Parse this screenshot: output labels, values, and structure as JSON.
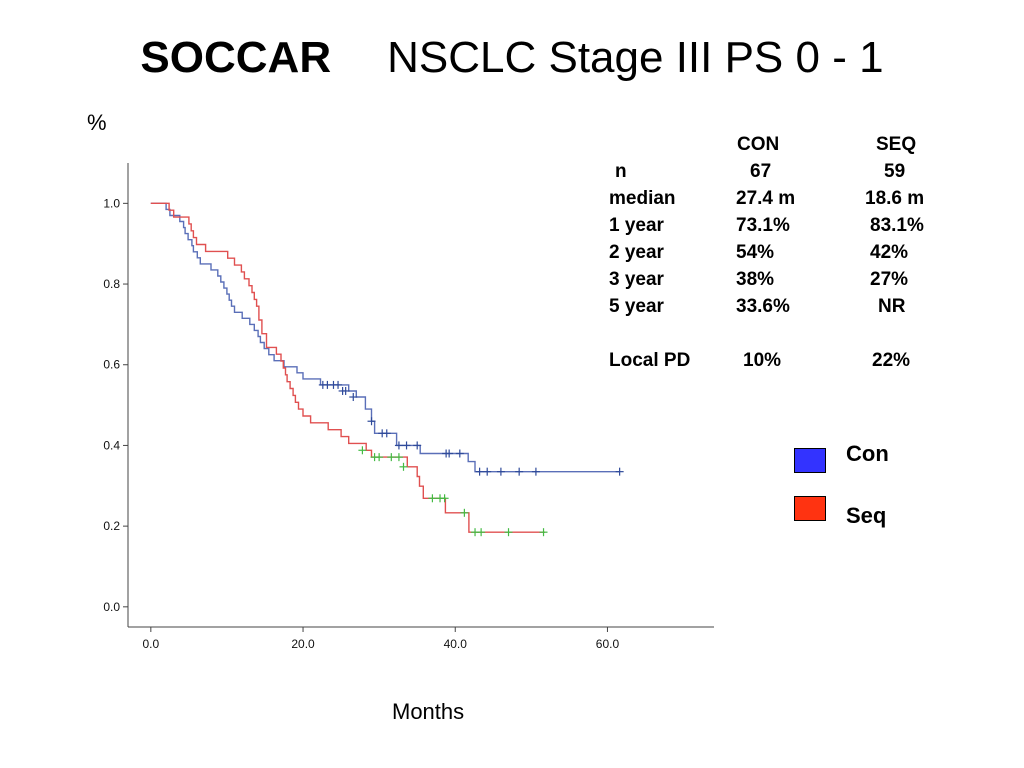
{
  "title": {
    "bold": "SOCCAR",
    "rest": "NSCLC Stage III PS 0 - 1"
  },
  "stats_table": {
    "headers": [
      "CON",
      "SEQ"
    ],
    "rows": [
      {
        "label": "n",
        "con": "67",
        "seq": "59"
      },
      {
        "label": "median",
        "con": "27.4 m",
        "seq": "18.6 m"
      },
      {
        "label": "1 year",
        "con": "73.1%",
        "seq": "83.1%"
      },
      {
        "label": "2 year",
        "con": "54%",
        "seq": "42%"
      },
      {
        "label": "3 year",
        "con": "38%",
        "seq": "27%"
      },
      {
        "label": "5 year",
        "con": "33.6%",
        "seq": "NR"
      }
    ],
    "local_pd": {
      "label": "Local  PD",
      "con": "10%",
      "seq": "22%"
    }
  },
  "legend": [
    {
      "label": "Con",
      "color": "#3333ff"
    },
    {
      "label": "Seq",
      "color": "#ff3311"
    }
  ],
  "chart_data": {
    "type": "line",
    "title": "",
    "xlabel": "Months",
    "ylabel": "%",
    "xlim": [
      -3,
      74
    ],
    "ylim": [
      -0.05,
      1.1
    ],
    "x_ticks": [
      0,
      20,
      40,
      60
    ],
    "x_tick_labels": [
      "0.0",
      "20.0",
      "40.0",
      "60.0"
    ],
    "y_ticks": [
      0,
      0.2,
      0.4,
      0.6,
      0.8,
      1.0
    ],
    "y_tick_labels": [
      "0.0",
      "0.2",
      "0.4",
      "0.6",
      "0.8",
      "1.0"
    ],
    "grid": false,
    "series": [
      {
        "name": "Con",
        "color": "#5a6fb8",
        "censor_color": "#2f4a9a",
        "steps": [
          [
            0,
            1.0
          ],
          [
            2.0,
            1.0
          ],
          [
            2.0,
            0.985
          ],
          [
            2.5,
            0.985
          ],
          [
            2.5,
            0.97
          ],
          [
            3.8,
            0.97
          ],
          [
            3.8,
            0.955
          ],
          [
            4.3,
            0.955
          ],
          [
            4.3,
            0.94
          ],
          [
            4.5,
            0.94
          ],
          [
            4.5,
            0.925
          ],
          [
            4.9,
            0.925
          ],
          [
            4.9,
            0.91
          ],
          [
            5.4,
            0.91
          ],
          [
            5.4,
            0.895
          ],
          [
            5.6,
            0.895
          ],
          [
            5.6,
            0.88
          ],
          [
            6.1,
            0.88
          ],
          [
            6.1,
            0.865
          ],
          [
            6.5,
            0.865
          ],
          [
            6.5,
            0.85
          ],
          [
            7.9,
            0.85
          ],
          [
            7.9,
            0.835
          ],
          [
            8.8,
            0.835
          ],
          [
            8.8,
            0.82
          ],
          [
            9.2,
            0.82
          ],
          [
            9.2,
            0.805
          ],
          [
            9.6,
            0.805
          ],
          [
            9.6,
            0.79
          ],
          [
            10.0,
            0.79
          ],
          [
            10.0,
            0.775
          ],
          [
            10.3,
            0.775
          ],
          [
            10.3,
            0.76
          ],
          [
            10.6,
            0.76
          ],
          [
            10.6,
            0.745
          ],
          [
            11.0,
            0.745
          ],
          [
            11.0,
            0.73
          ],
          [
            12.0,
            0.73
          ],
          [
            12.0,
            0.715
          ],
          [
            13.0,
            0.715
          ],
          [
            13.0,
            0.7
          ],
          [
            13.6,
            0.7
          ],
          [
            13.6,
            0.685
          ],
          [
            14.1,
            0.685
          ],
          [
            14.1,
            0.67
          ],
          [
            14.4,
            0.67
          ],
          [
            14.4,
            0.655
          ],
          [
            14.9,
            0.655
          ],
          [
            14.9,
            0.64
          ],
          [
            15.5,
            0.64
          ],
          [
            15.5,
            0.625
          ],
          [
            16.2,
            0.625
          ],
          [
            16.2,
            0.61
          ],
          [
            17.5,
            0.61
          ],
          [
            17.5,
            0.595
          ],
          [
            19.2,
            0.595
          ],
          [
            19.2,
            0.58
          ],
          [
            20.0,
            0.58
          ],
          [
            20.0,
            0.565
          ],
          [
            22.3,
            0.565
          ],
          [
            22.3,
            0.55
          ],
          [
            26.0,
            0.55
          ],
          [
            26.0,
            0.535
          ],
          [
            27.0,
            0.535
          ],
          [
            27.0,
            0.52
          ],
          [
            28.2,
            0.52
          ],
          [
            28.2,
            0.49
          ],
          [
            29.0,
            0.49
          ],
          [
            29.0,
            0.46
          ],
          [
            29.4,
            0.46
          ],
          [
            29.4,
            0.43
          ],
          [
            32.3,
            0.43
          ],
          [
            32.3,
            0.4
          ],
          [
            35.4,
            0.4
          ],
          [
            35.4,
            0.38
          ],
          [
            41.7,
            0.38
          ],
          [
            41.7,
            0.36
          ],
          [
            42.6,
            0.36
          ],
          [
            42.6,
            0.335
          ],
          [
            61.6,
            0.335
          ]
        ],
        "censored": [
          [
            22.6,
            0.55
          ],
          [
            23.2,
            0.55
          ],
          [
            24.0,
            0.55
          ],
          [
            24.6,
            0.55
          ],
          [
            25.2,
            0.535
          ],
          [
            25.6,
            0.535
          ],
          [
            26.6,
            0.52
          ],
          [
            29.0,
            0.46
          ],
          [
            30.4,
            0.43
          ],
          [
            31.0,
            0.43
          ],
          [
            32.6,
            0.4
          ],
          [
            33.6,
            0.4
          ],
          [
            35.0,
            0.4
          ],
          [
            38.8,
            0.38
          ],
          [
            39.2,
            0.38
          ],
          [
            40.6,
            0.38
          ],
          [
            43.2,
            0.335
          ],
          [
            44.2,
            0.335
          ],
          [
            46.0,
            0.335
          ],
          [
            48.4,
            0.335
          ],
          [
            50.6,
            0.335
          ],
          [
            61.6,
            0.335
          ]
        ]
      },
      {
        "name": "Seq",
        "color": "#e05050",
        "censor_color": "#44bb44",
        "steps": [
          [
            0,
            1.0
          ],
          [
            2.4,
            1.0
          ],
          [
            2.4,
            0.983
          ],
          [
            3.0,
            0.983
          ],
          [
            3.0,
            0.966
          ],
          [
            5.0,
            0.966
          ],
          [
            5.0,
            0.949
          ],
          [
            5.3,
            0.949
          ],
          [
            5.3,
            0.932
          ],
          [
            5.6,
            0.932
          ],
          [
            5.6,
            0.915
          ],
          [
            6.0,
            0.915
          ],
          [
            6.0,
            0.898
          ],
          [
            7.2,
            0.898
          ],
          [
            7.2,
            0.881
          ],
          [
            10.1,
            0.881
          ],
          [
            10.1,
            0.864
          ],
          [
            11.0,
            0.864
          ],
          [
            11.0,
            0.847
          ],
          [
            11.9,
            0.847
          ],
          [
            11.9,
            0.83
          ],
          [
            12.3,
            0.83
          ],
          [
            12.3,
            0.813
          ],
          [
            12.9,
            0.813
          ],
          [
            12.9,
            0.796
          ],
          [
            13.3,
            0.796
          ],
          [
            13.3,
            0.779
          ],
          [
            13.6,
            0.779
          ],
          [
            13.6,
            0.762
          ],
          [
            13.9,
            0.762
          ],
          [
            13.9,
            0.745
          ],
          [
            14.2,
            0.745
          ],
          [
            14.2,
            0.711
          ],
          [
            14.6,
            0.711
          ],
          [
            14.6,
            0.677
          ],
          [
            15.2,
            0.677
          ],
          [
            15.2,
            0.643
          ],
          [
            16.5,
            0.643
          ],
          [
            16.5,
            0.626
          ],
          [
            17.1,
            0.626
          ],
          [
            17.1,
            0.609
          ],
          [
            17.4,
            0.609
          ],
          [
            17.4,
            0.592
          ],
          [
            17.7,
            0.592
          ],
          [
            17.7,
            0.575
          ],
          [
            17.9,
            0.575
          ],
          [
            17.9,
            0.558
          ],
          [
            18.3,
            0.558
          ],
          [
            18.3,
            0.541
          ],
          [
            18.7,
            0.541
          ],
          [
            18.7,
            0.524
          ],
          [
            19.0,
            0.524
          ],
          [
            19.0,
            0.507
          ],
          [
            19.4,
            0.507
          ],
          [
            19.4,
            0.49
          ],
          [
            20.0,
            0.49
          ],
          [
            20.0,
            0.473
          ],
          [
            21.0,
            0.473
          ],
          [
            21.0,
            0.456
          ],
          [
            23.3,
            0.456
          ],
          [
            23.3,
            0.439
          ],
          [
            25.0,
            0.439
          ],
          [
            25.0,
            0.422
          ],
          [
            26.0,
            0.422
          ],
          [
            26.0,
            0.405
          ],
          [
            28.3,
            0.405
          ],
          [
            28.3,
            0.388
          ],
          [
            29.0,
            0.388
          ],
          [
            29.0,
            0.371
          ],
          [
            33.7,
            0.371
          ],
          [
            33.7,
            0.347
          ],
          [
            35.0,
            0.347
          ],
          [
            35.0,
            0.323
          ],
          [
            35.3,
            0.323
          ],
          [
            35.3,
            0.299
          ],
          [
            35.8,
            0.299
          ],
          [
            35.8,
            0.269
          ],
          [
            38.7,
            0.269
          ],
          [
            38.7,
            0.233
          ],
          [
            41.8,
            0.233
          ],
          [
            41.8,
            0.185
          ],
          [
            51.8,
            0.185
          ]
        ],
        "censored": [
          [
            27.8,
            0.388
          ],
          [
            29.4,
            0.371
          ],
          [
            30.0,
            0.371
          ],
          [
            31.6,
            0.371
          ],
          [
            32.6,
            0.371
          ],
          [
            33.2,
            0.347
          ],
          [
            37.0,
            0.269
          ],
          [
            38.0,
            0.269
          ],
          [
            38.6,
            0.269
          ],
          [
            41.2,
            0.233
          ],
          [
            42.6,
            0.185
          ],
          [
            43.4,
            0.185
          ],
          [
            47.0,
            0.185
          ],
          [
            51.6,
            0.185
          ]
        ]
      }
    ]
  }
}
